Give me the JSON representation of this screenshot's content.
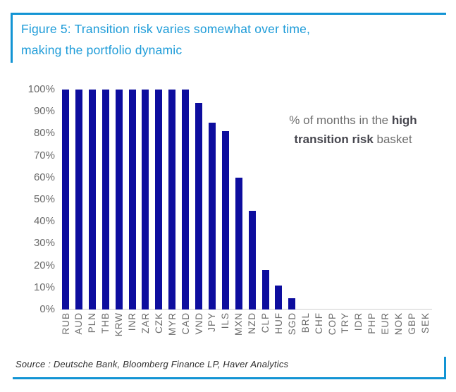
{
  "header": {
    "title_lines": [
      "Figure 5: Transition risk varies somewhat over time,",
      "making the portfolio dynamic"
    ],
    "accent_color": "#1294d4",
    "title_color": "#1c9bd8"
  },
  "chart_data": {
    "type": "bar",
    "title": "",
    "xlabel": "",
    "ylabel": "",
    "categories": [
      "RUB",
      "AUD",
      "PLN",
      "THB",
      "KRW",
      "INR",
      "ZAR",
      "CZK",
      "MYR",
      "CAD",
      "VND",
      "JPY",
      "ILS",
      "MXN",
      "NZD",
      "CLP",
      "HUF",
      "SGD",
      "BRL",
      "CHF",
      "COP",
      "TRY",
      "IDR",
      "PHP",
      "EUR",
      "NOK",
      "GBP",
      "SEK"
    ],
    "values": [
      100,
      100,
      100,
      100,
      100,
      100,
      100,
      100,
      100,
      100,
      94,
      85,
      81,
      60,
      45,
      18,
      11,
      5,
      0,
      0,
      0,
      0,
      0,
      0,
      0,
      0,
      0,
      0
    ],
    "yticks": [
      "100%",
      "90%",
      "80%",
      "70%",
      "60%",
      "50%",
      "40%",
      "30%",
      "20%",
      "10%",
      "0%"
    ],
    "ylim": [
      0,
      100
    ],
    "grid": false,
    "legend": null,
    "bar_color": "#0d0d9e",
    "axis_line_color": "#cfcfcf",
    "annotation": "% of months in the high transition risk basket",
    "annotation_segments": [
      {
        "text": "% of months in the ",
        "bold": false
      },
      {
        "text": "high transition risk",
        "bold": true
      },
      {
        "text": " basket",
        "bold": false
      }
    ]
  },
  "footer": {
    "source": "Source : Deutsche Bank, Bloomberg Finance LP, Haver Analytics"
  }
}
